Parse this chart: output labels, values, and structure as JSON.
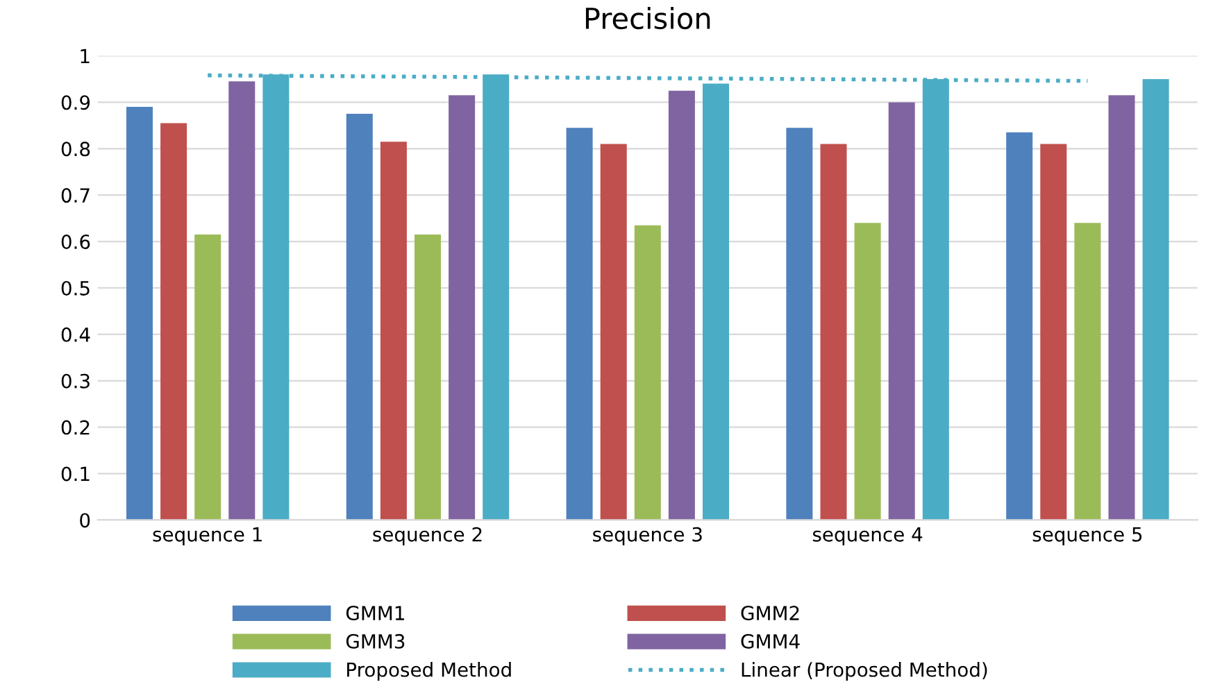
{
  "chart_data": {
    "type": "bar",
    "title": "Precision",
    "categories": [
      "sequence 1",
      "sequence 2",
      "sequence 3",
      "sequence 4",
      "sequence 5"
    ],
    "series": [
      {
        "name": "GMM1",
        "color": "#4f81bd",
        "values": [
          0.89,
          0.875,
          0.845,
          0.845,
          0.835
        ]
      },
      {
        "name": "GMM2",
        "color": "#c0504d",
        "values": [
          0.855,
          0.815,
          0.81,
          0.81,
          0.81
        ]
      },
      {
        "name": "GMM3",
        "color": "#9bbb59",
        "values": [
          0.615,
          0.615,
          0.635,
          0.64,
          0.64
        ]
      },
      {
        "name": "GMM4",
        "color": "#8064a2",
        "values": [
          0.945,
          0.915,
          0.925,
          0.9,
          0.915
        ]
      },
      {
        "name": "Proposed Method",
        "color": "#4bacc6",
        "values": [
          0.96,
          0.96,
          0.94,
          0.95,
          0.95
        ]
      },
      {
        "name": "Linear (Proposed Method)",
        "color": "#4bacc6",
        "type": "line",
        "line_style": "dotted",
        "values": [
          0.958,
          0.955,
          0.952,
          0.949,
          0.946
        ]
      }
    ],
    "ylim": [
      0,
      1
    ],
    "yticks": [
      0,
      0.1,
      0.2,
      0.3,
      0.4,
      0.5,
      0.6,
      0.7,
      0.8,
      0.9,
      1
    ],
    "grid": "y",
    "legend": "bottom"
  }
}
